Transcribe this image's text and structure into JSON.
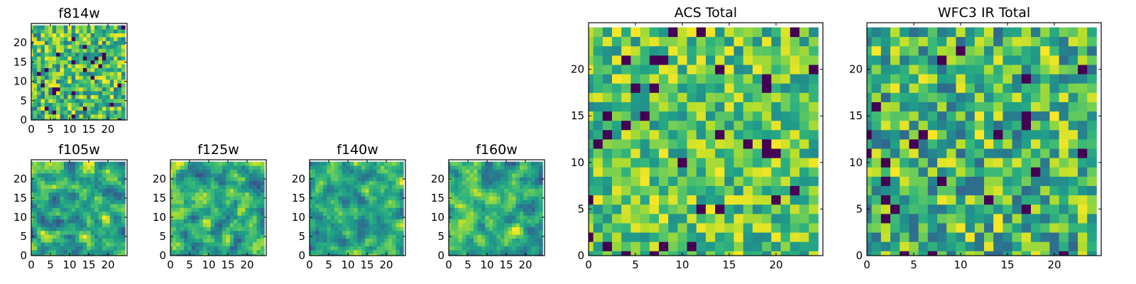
{
  "chart_data": [
    {
      "type": "heatmap",
      "title": "f814w",
      "colormap": "viridis",
      "xlim": [
        0,
        25
      ],
      "ylim": [
        0,
        25
      ],
      "xticks": [
        0,
        5,
        10,
        15,
        20
      ],
      "yticks": [
        0,
        5,
        10,
        15,
        20
      ],
      "grid_size": [
        25,
        25
      ],
      "cell_size": 1,
      "seed": 11,
      "smoothing": 0,
      "cmin": 0.35
    },
    {
      "type": "heatmap",
      "title": "f105w",
      "colormap": "viridis",
      "xlim": [
        0,
        25
      ],
      "ylim": [
        0,
        25
      ],
      "xticks": [
        0,
        5,
        10,
        15,
        20
      ],
      "yticks": [
        0,
        5,
        10,
        15,
        20
      ],
      "grid_size": [
        25,
        25
      ],
      "cell_size": 1,
      "seed": 23,
      "smoothing": 1,
      "cmin": 0.25
    },
    {
      "type": "heatmap",
      "title": "f125w",
      "colormap": "viridis",
      "xlim": [
        0,
        25
      ],
      "ylim": [
        0,
        25
      ],
      "xticks": [
        0,
        5,
        10,
        15,
        20
      ],
      "yticks": [
        0,
        5,
        10,
        15,
        20
      ],
      "grid_size": [
        25,
        25
      ],
      "cell_size": 1,
      "seed": 37,
      "smoothing": 1,
      "cmin": 0.25
    },
    {
      "type": "heatmap",
      "title": "f140w",
      "colormap": "viridis",
      "xlim": [
        0,
        25
      ],
      "ylim": [
        0,
        25
      ],
      "xticks": [
        0,
        5,
        10,
        15,
        20
      ],
      "yticks": [
        0,
        5,
        10,
        15,
        20
      ],
      "grid_size": [
        25,
        25
      ],
      "cell_size": 1,
      "seed": 41,
      "smoothing": 1,
      "cmin": 0.25
    },
    {
      "type": "heatmap",
      "title": "f160w",
      "colormap": "viridis",
      "xlim": [
        0,
        25
      ],
      "ylim": [
        0,
        25
      ],
      "xticks": [
        0,
        5,
        10,
        15,
        20
      ],
      "yticks": [
        0,
        5,
        10,
        15,
        20
      ],
      "grid_size": [
        25,
        25
      ],
      "cell_size": 1,
      "seed": 53,
      "smoothing": 1,
      "cmin": 0.25
    },
    {
      "type": "heatmap",
      "title": "ACS Total",
      "colormap": "viridis",
      "xlim": [
        0,
        25
      ],
      "ylim": [
        0,
        25
      ],
      "xticks": [
        0,
        5,
        10,
        15,
        20
      ],
      "yticks": [
        0,
        5,
        10,
        15,
        20
      ],
      "grid_size": [
        25,
        25
      ],
      "cell_size": 1,
      "seed": 67,
      "smoothing": 0,
      "cmin": 0.45
    },
    {
      "type": "heatmap",
      "title": "WFC3 IR Total",
      "colormap": "viridis",
      "xlim": [
        0,
        25
      ],
      "ylim": [
        0,
        25
      ],
      "xticks": [
        0,
        5,
        10,
        15,
        20
      ],
      "yticks": [
        0,
        5,
        10,
        15,
        20
      ],
      "grid_size": [
        25,
        25
      ],
      "cell_size": 1,
      "seed": 79,
      "smoothing": 0,
      "cmin": 0.3
    }
  ]
}
